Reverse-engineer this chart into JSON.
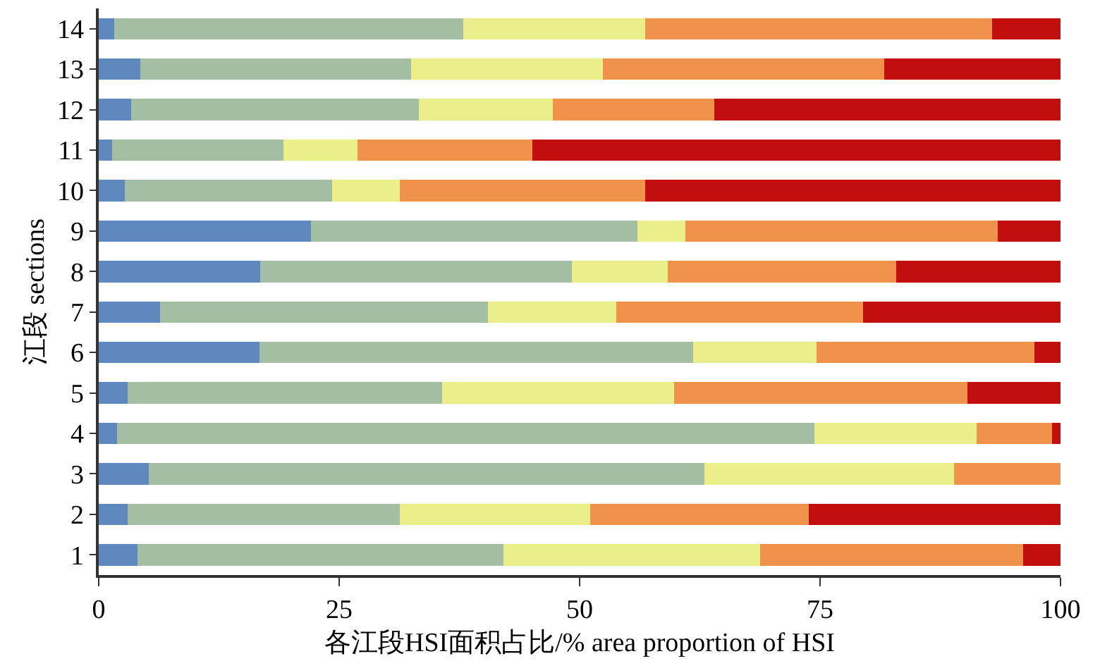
{
  "chart_data": {
    "type": "bar",
    "orientation": "horizontal",
    "stacked": true,
    "xlabel": "各江段HSI面积占比/% area proportion of HSI",
    "ylabel": "江段 sections",
    "categories": [
      "14",
      "13",
      "12",
      "11",
      "10",
      "9",
      "8",
      "7",
      "6",
      "5",
      "4",
      "3",
      "2",
      "1"
    ],
    "series": [
      {
        "color": "#5f88be",
        "values": [
          1.6,
          4.3,
          3.4,
          1.4,
          2.7,
          22.1,
          16.8,
          6.4,
          16.7,
          3.0,
          1.9,
          5.2,
          3.0,
          4.0
        ]
      },
      {
        "color": "#a4bea3",
        "values": [
          36.3,
          28.2,
          29.9,
          17.8,
          21.6,
          33.9,
          32.4,
          34.1,
          45.1,
          32.7,
          72.5,
          57.8,
          28.3,
          38.1
        ]
      },
      {
        "color": "#eaef8c",
        "values": [
          18.9,
          19.9,
          13.9,
          7.7,
          7.0,
          5.0,
          10.0,
          13.3,
          12.8,
          24.1,
          16.9,
          25.9,
          19.8,
          26.7
        ]
      },
      {
        "color": "#ef924c",
        "values": [
          36.1,
          29.3,
          16.8,
          18.2,
          25.5,
          32.5,
          23.7,
          25.7,
          22.7,
          30.5,
          7.8,
          11.1,
          22.7,
          27.3
        ]
      },
      {
        "color": "#c30e10",
        "values": [
          7.1,
          18.3,
          36.0,
          54.9,
          43.2,
          6.5,
          17.1,
          20.5,
          2.7,
          9.7,
          0.9,
          null,
          26.2,
          3.9
        ]
      }
    ],
    "xlim": [
      0,
      100
    ],
    "xticks": [
      0,
      25,
      50,
      75,
      100
    ]
  }
}
